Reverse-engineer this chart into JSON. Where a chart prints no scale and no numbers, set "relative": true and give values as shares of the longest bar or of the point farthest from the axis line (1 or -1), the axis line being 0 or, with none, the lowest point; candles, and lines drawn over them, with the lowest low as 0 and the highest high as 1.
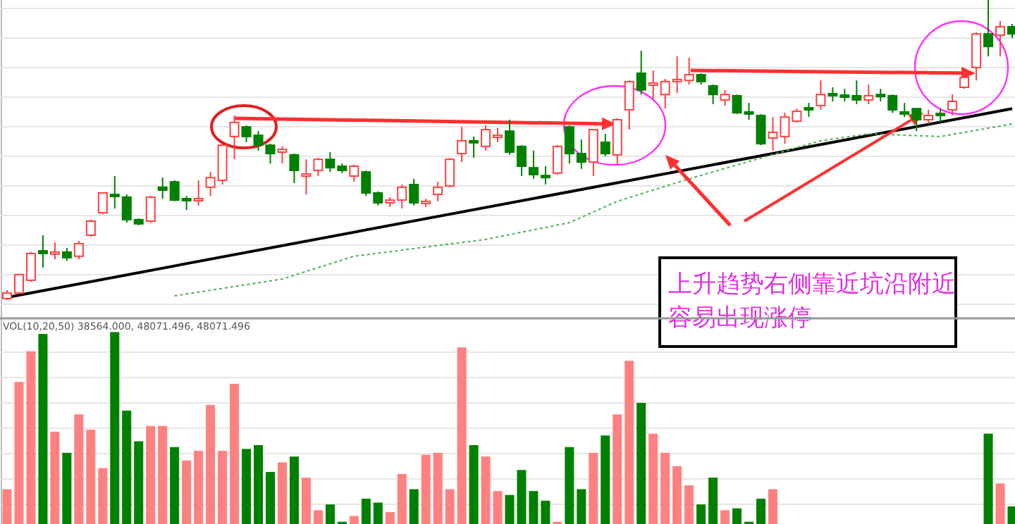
{
  "chart_data": [
    {
      "type": "candlestick",
      "relative": true,
      "grid": "y",
      "categories": [
        null,
        null,
        null,
        null,
        null,
        null,
        null,
        null,
        null,
        null,
        null,
        null,
        null,
        null,
        null,
        null,
        null,
        null,
        null,
        null,
        null,
        null,
        null,
        null,
        null,
        null,
        null,
        null,
        null,
        null,
        null,
        null,
        null,
        null,
        null,
        null,
        null,
        null,
        null,
        null,
        null,
        null,
        null,
        null,
        null,
        null,
        null,
        null,
        null,
        null,
        null,
        null,
        null,
        null,
        null,
        null,
        null,
        null,
        null,
        null,
        null,
        null,
        null,
        null,
        null,
        null,
        null,
        null,
        null,
        null,
        null,
        null,
        null,
        null,
        null,
        null,
        null,
        null,
        null,
        null,
        null,
        null,
        null,
        null,
        null
      ],
      "ohlc": [
        [
          0.005,
          0.033,
          0,
          0.023
        ],
        [
          0.023,
          0.085,
          0.019,
          0.085
        ],
        [
          0.066,
          0.16,
          0.061,
          0.155
        ],
        [
          0.164,
          0.216,
          0.108,
          0.155
        ],
        [
          0.157,
          0.192,
          0.136,
          0.16
        ],
        [
          0.16,
          0.174,
          0.131,
          0.141
        ],
        [
          0.146,
          0.197,
          0.136,
          0.188
        ],
        [
          0.216,
          0.268,
          0.211,
          0.263
        ],
        [
          0.291,
          0.357,
          0.286,
          0.357
        ],
        [
          0.352,
          0.413,
          0.305,
          0.347
        ],
        [
          0.343,
          0.352,
          0.258,
          0.268
        ],
        [
          0.268,
          0.272,
          0.249,
          0.254
        ],
        [
          0.263,
          0.347,
          0.258,
          0.343
        ],
        [
          0.376,
          0.408,
          0.338,
          0.366
        ],
        [
          0.394,
          0.399,
          0.329,
          0.333
        ],
        [
          0.338,
          0.347,
          0.3,
          0.333
        ],
        [
          0.336,
          0.399,
          0.315,
          0.338
        ],
        [
          0.376,
          0.427,
          0.347,
          0.408
        ],
        [
          0.399,
          0.521,
          0.385,
          0.516
        ],
        [
          0.545,
          0.615,
          0.469,
          0.592
        ],
        [
          0.577,
          0.582,
          0.526,
          0.545
        ],
        [
          0.549,
          0.563,
          0.498,
          0.516
        ],
        [
          0.516,
          0.521,
          0.455,
          0.488
        ],
        [
          0.493,
          0.512,
          0.455,
          0.502
        ],
        [
          0.484,
          0.488,
          0.39,
          0.432
        ],
        [
          0.418,
          0.469,
          0.352,
          0.42
        ],
        [
          0.432,
          0.474,
          0.413,
          0.469
        ],
        [
          0.469,
          0.493,
          0.427,
          0.441
        ],
        [
          0.446,
          0.455,
          0.423,
          0.432
        ],
        [
          0.413,
          0.451,
          0.394,
          0.446
        ],
        [
          0.427,
          0.432,
          0.347,
          0.357
        ],
        [
          0.357,
          0.362,
          0.315,
          0.324
        ],
        [
          0.324,
          0.343,
          0.31,
          0.333
        ],
        [
          0.333,
          0.385,
          0.305,
          0.376
        ],
        [
          0.385,
          0.404,
          0.315,
          0.324
        ],
        [
          0.326,
          0.338,
          0.31,
          0.329
        ],
        [
          0.352,
          0.394,
          0.329,
          0.376
        ],
        [
          0.38,
          0.474,
          0.376,
          0.469
        ],
        [
          0.488,
          0.577,
          0.46,
          0.531
        ],
        [
          0.531,
          0.545,
          0.474,
          0.526
        ],
        [
          0.512,
          0.582,
          0.498,
          0.568
        ],
        [
          0.547,
          0.573,
          0.526,
          0.549
        ],
        [
          0.563,
          0.601,
          0.484,
          0.493
        ],
        [
          0.512,
          0.516,
          0.413,
          0.446
        ],
        [
          0.441,
          0.498,
          0.404,
          0.418
        ],
        [
          0.415,
          0.446,
          0.385,
          0.413
        ],
        [
          0.423,
          0.516,
          0.418,
          0.512
        ],
        [
          0.577,
          0.582,
          0.455,
          0.488
        ],
        [
          0.488,
          0.535,
          0.437,
          0.46
        ],
        [
          0.46,
          0.568,
          0.413,
          0.568
        ],
        [
          0.526,
          0.554,
          0.479,
          0.488
        ],
        [
          0.484,
          0.606,
          0.451,
          0.601
        ],
        [
          0.634,
          0.732,
          0.568,
          0.728
        ],
        [
          0.756,
          0.831,
          0.685,
          0.7
        ],
        [
          0.721,
          0.765,
          0.667,
          0.723
        ],
        [
          0.685,
          0.737,
          0.638,
          0.728
        ],
        [
          0.732,
          0.812,
          0.69,
          0.735
        ],
        [
          0.732,
          0.808,
          0.718,
          0.751
        ],
        [
          0.751,
          0.756,
          0.718,
          0.728
        ],
        [
          0.714,
          0.718,
          0.653,
          0.685
        ],
        [
          0.667,
          0.7,
          0.648,
          0.685
        ],
        [
          0.681,
          0.685,
          0.62,
          0.624
        ],
        [
          0.627,
          0.657,
          0.601,
          0.624
        ],
        [
          0.615,
          0.62,
          0.516,
          0.521
        ],
        [
          0.54,
          0.61,
          0.498,
          0.559
        ],
        [
          0.545,
          0.624,
          0.521,
          0.61
        ],
        [
          0.596,
          0.638,
          0.592,
          0.629
        ],
        [
          0.641,
          0.657,
          0.61,
          0.638
        ],
        [
          0.648,
          0.732,
          0.634,
          0.685
        ],
        [
          0.688,
          0.709,
          0.662,
          0.685
        ],
        [
          0.683,
          0.704,
          0.662,
          0.681
        ],
        [
          0.681,
          0.732,
          0.653,
          0.667
        ],
        [
          0.667,
          0.718,
          0.653,
          0.681
        ],
        [
          0.685,
          0.704,
          0.662,
          0.681
        ],
        [
          0.681,
          0.685,
          0.624,
          0.634
        ],
        [
          0.627,
          0.657,
          0.61,
          0.624
        ],
        [
          0.638,
          0.638,
          0.563,
          0.601
        ],
        [
          0.601,
          0.634,
          0.587,
          0.615
        ],
        [
          0.622,
          0.638,
          0.592,
          0.62
        ],
        [
          0.634,
          0.685,
          0.615,
          0.662
        ],
        [
          0.709,
          0.761,
          0.704,
          0.742
        ],
        [
          0.775,
          0.892,
          0.732,
          0.887
        ],
        [
          0.887,
          1,
          0.812,
          0.845
        ],
        [
          0.883,
          0.93,
          0.812,
          0.911
        ],
        [
          0.911,
          0.92,
          0.873,
          0.887
        ]
      ],
      "series": [
        {
          "type": "line",
          "color": "#000000",
          "values": [
            0.009,
            null,
            null,
            null,
            null,
            null,
            null,
            null,
            null,
            null,
            null,
            null,
            null,
            null,
            null,
            null,
            null,
            null,
            null,
            null,
            null,
            null,
            null,
            null,
            null,
            null,
            null,
            null,
            null,
            null,
            null,
            null,
            null,
            null,
            null,
            null,
            null,
            null,
            null,
            null,
            null,
            null,
            null,
            null,
            null,
            null,
            null,
            null,
            null,
            null,
            null,
            null,
            null,
            null,
            null,
            null,
            null,
            null,
            null,
            null,
            null,
            null,
            null,
            null,
            null,
            null,
            null,
            null,
            null,
            null,
            null,
            null,
            null,
            null,
            null,
            null,
            null,
            null,
            null,
            null,
            null,
            null,
            null,
            null,
            0.638
          ]
        },
        {
          "type": "line",
          "color": "#4caf50",
          "line_style": "dotted",
          "values": [
            null,
            null,
            null,
            null,
            null,
            null,
            null,
            null,
            null,
            null,
            null,
            null,
            null,
            null,
            0.014,
            null,
            null,
            null,
            null,
            null,
            null,
            null,
            null,
            0.07,
            null,
            null,
            null,
            null,
            null,
            0.146,
            null,
            null,
            null,
            null,
            null,
            null,
            null,
            null,
            null,
            null,
            0.202,
            null,
            null,
            null,
            null,
            null,
            null,
            0.258,
            null,
            null,
            null,
            0.329,
            null,
            null,
            null,
            null,
            null,
            0.404,
            null,
            null,
            null,
            null,
            null,
            null,
            null,
            null,
            null,
            null,
            0.531,
            null,
            null,
            null,
            0.554,
            null,
            null,
            null,
            null,
            null,
            0.545,
            null,
            null,
            null,
            null,
            null,
            0.587
          ]
        }
      ],
      "annotations": [
        "上升趋势右侧靠近坑沿附近",
        "容易出现涨停"
      ]
    },
    {
      "type": "bar",
      "relative": true,
      "grid": "y",
      "categories": [
        null,
        null,
        null,
        null,
        null,
        null,
        null,
        null,
        null,
        null,
        null,
        null,
        null,
        null,
        null,
        null,
        null,
        null,
        null,
        null,
        null,
        null,
        null,
        null,
        null,
        null,
        null,
        null,
        null,
        null,
        null,
        null,
        null,
        null,
        null,
        null,
        null,
        null,
        null,
        null,
        null,
        null,
        null,
        null,
        null,
        null,
        null,
        null,
        null,
        null,
        null,
        null,
        null,
        null,
        null,
        null,
        null,
        null,
        null,
        null,
        null,
        null,
        null,
        null,
        null,
        null,
        null,
        null,
        null,
        null,
        null,
        null,
        null,
        null,
        null,
        null,
        null,
        null,
        null,
        null,
        null,
        null,
        null,
        null,
        null
      ],
      "values": [
        0.18,
        0.74,
        0.9,
        0.99,
        0.48,
        0.37,
        0.57,
        0.49,
        0.29,
        1,
        0.59,
        0.43,
        0.51,
        0.51,
        0.4,
        0.33,
        0.38,
        0.62,
        0.38,
        0.73,
        0.39,
        0.41,
        0.27,
        0.32,
        0.35,
        0.24,
        0.07,
        0.1,
        0.01,
        0.04,
        0.13,
        0.11,
        0.06,
        0.26,
        0.18,
        0.36,
        0.37,
        0.18,
        0.92,
        0.41,
        0.35,
        0.17,
        0.15,
        0.28,
        0.17,
        0.12,
        0.01,
        0.4,
        0.18,
        0.37,
        0.46,
        0.57,
        0.85,
        0.63,
        0.47,
        0.37,
        0.3,
        0.2,
        0.1,
        0.24,
        0.07,
        0.08,
        0.01,
        0.13,
        0.18,
        null,
        null,
        null,
        null,
        null,
        null,
        null,
        null,
        null,
        null,
        null,
        null,
        null,
        null,
        null,
        null,
        null,
        0.47,
        0.21,
        0.09
      ],
      "colors": [
        "#ff8080",
        "#ff8080",
        "#ff8080",
        "#008000",
        "#ff8080",
        "#008000",
        "#ff8080",
        "#ff8080",
        "#ff8080",
        "#008000",
        "#008000",
        "#008000",
        "#ff8080",
        "#ff8080",
        "#008000",
        "#ff8080",
        "#ff8080",
        "#ff8080",
        "#ff8080",
        "#ff8080",
        "#008000",
        "#008000",
        "#008000",
        "#ff8080",
        "#008000",
        "#ff8080",
        "#ff8080",
        "#008000",
        "#008000",
        "#ff8080",
        "#008000",
        "#008000",
        "#ff8080",
        "#ff8080",
        "#008000",
        "#ff8080",
        "#ff8080",
        "#ff8080",
        "#ff8080",
        "#008000",
        "#ff8080",
        "#ff8080",
        "#008000",
        "#008000",
        "#008000",
        "#008000",
        "#ff8080",
        "#008000",
        "#008000",
        "#ff8080",
        "#008000",
        "#ff8080",
        "#ff8080",
        "#008000",
        "#ff8080",
        "#ff8080",
        "#ff8080",
        "#ff8080",
        "#008000",
        "#008000",
        "#ff8080",
        "#008000",
        "#008000",
        "#008000",
        "#ff8080",
        null,
        null,
        null,
        null,
        null,
        null,
        null,
        null,
        null,
        null,
        null,
        null,
        null,
        null,
        null,
        null,
        null,
        "#008000",
        "#ff8080",
        "#008000"
      ],
      "annotations": [
        "VOL(10,20,50) 38564.000, 48071.496, 48071.496"
      ]
    }
  ]
}
